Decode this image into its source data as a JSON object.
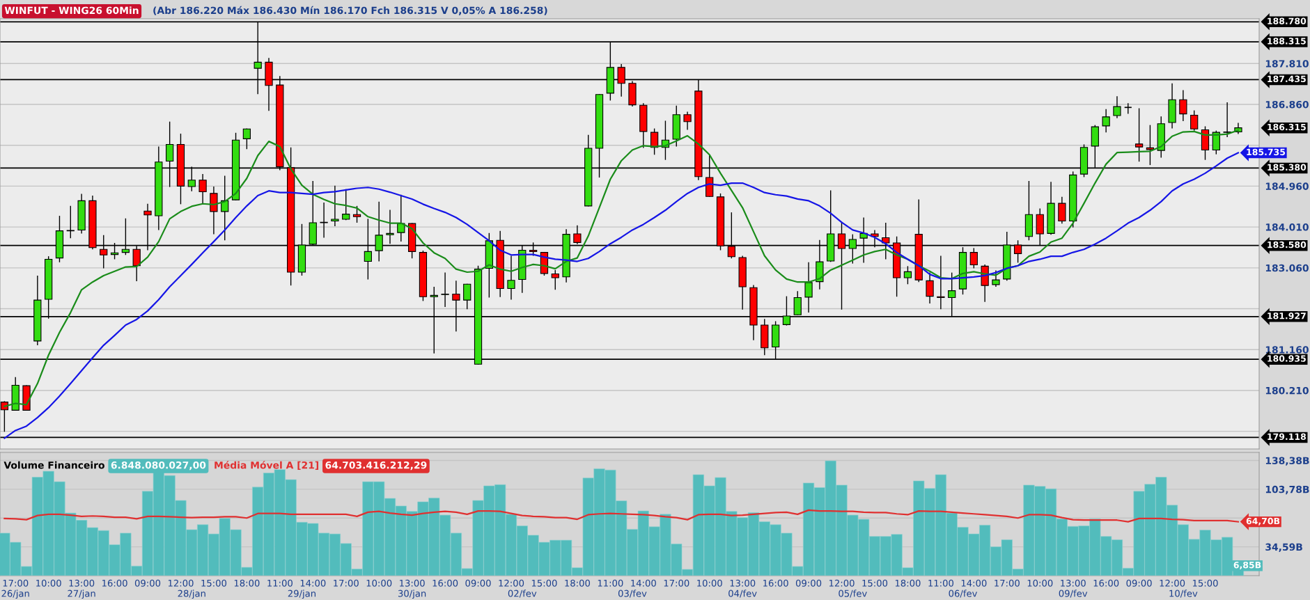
{
  "chart_data": [
    {
      "type": "candlestick",
      "title": "WINFUT - WING26 60Min",
      "subtitle": "(Abr 186.220 Máx 186.430 Mín 186.170 Fch 186.315 V 0,05% A 186.258)",
      "ohlc": [
        [
          179940,
          179960,
          179250,
          179760
        ],
        [
          179750,
          180520,
          179740,
          180330
        ],
        [
          180320,
          180330,
          179750,
          179750
        ],
        [
          181360,
          182880,
          181260,
          182310
        ],
        [
          182330,
          183330,
          181880,
          183260
        ],
        [
          183290,
          184270,
          183190,
          183920
        ],
        [
          183920,
          184500,
          183750,
          183930
        ],
        [
          183940,
          184780,
          183860,
          184620
        ],
        [
          184620,
          184740,
          183490,
          183530
        ],
        [
          183490,
          183820,
          183050,
          183360
        ],
        [
          183370,
          183640,
          183260,
          183410
        ],
        [
          183420,
          184210,
          183360,
          183490
        ],
        [
          183490,
          183570,
          182750,
          183110
        ],
        [
          184380,
          184550,
          183470,
          184290
        ],
        [
          184270,
          185880,
          183940,
          185520
        ],
        [
          185540,
          186460,
          184940,
          185930
        ],
        [
          185930,
          186180,
          184540,
          184960
        ],
        [
          184950,
          185410,
          184840,
          185100
        ],
        [
          185100,
          185240,
          184530,
          184830
        ],
        [
          184790,
          184950,
          183840,
          184370
        ],
        [
          184370,
          185200,
          183700,
          184620
        ],
        [
          184640,
          186200,
          184630,
          186030
        ],
        [
          186060,
          186300,
          185820,
          186290
        ],
        [
          187700,
          188780,
          187100,
          187840
        ],
        [
          187840,
          187940,
          186710,
          187300
        ],
        [
          187310,
          187520,
          185330,
          185410
        ],
        [
          185390,
          185860,
          182650,
          182960
        ],
        [
          182960,
          184080,
          182880,
          183590
        ],
        [
          183610,
          185080,
          183590,
          184110
        ],
        [
          184110,
          184580,
          183760,
          184120
        ],
        [
          184150,
          184970,
          184030,
          184190
        ],
        [
          184190,
          184890,
          184170,
          184310
        ],
        [
          184300,
          184500,
          184110,
          184250
        ],
        [
          183210,
          184200,
          182790,
          183440
        ],
        [
          183460,
          184600,
          183210,
          183820
        ],
        [
          183830,
          184410,
          183620,
          183860
        ],
        [
          183880,
          184760,
          183670,
          184090
        ],
        [
          184090,
          184100,
          183280,
          183440
        ],
        [
          183420,
          183460,
          182290,
          182390
        ],
        [
          182390,
          182620,
          181070,
          182420
        ],
        [
          182440,
          182950,
          182150,
          182450
        ],
        [
          182450,
          182760,
          181580,
          182310
        ],
        [
          182310,
          182690,
          182100,
          182680
        ],
        [
          180820,
          183110,
          180810,
          183030
        ],
        [
          183050,
          183870,
          182370,
          183690
        ],
        [
          183700,
          183920,
          182380,
          182580
        ],
        [
          182580,
          183340,
          182320,
          182770
        ],
        [
          182790,
          183590,
          182480,
          183470
        ],
        [
          183470,
          183650,
          183340,
          183440
        ],
        [
          183420,
          183430,
          182880,
          182930
        ],
        [
          182920,
          183010,
          182550,
          182830
        ],
        [
          182850,
          183960,
          182720,
          183840
        ],
        [
          183850,
          184050,
          183610,
          183650
        ],
        [
          184500,
          186150,
          184490,
          185840
        ],
        [
          185840,
          187100,
          185160,
          187090
        ],
        [
          187120,
          188310,
          186950,
          187720
        ],
        [
          187720,
          187800,
          187040,
          187350
        ],
        [
          187350,
          187400,
          186810,
          186850
        ],
        [
          186840,
          186890,
          185850,
          186230
        ],
        [
          186210,
          186300,
          185690,
          185860
        ],
        [
          185860,
          186480,
          185570,
          186030
        ],
        [
          186050,
          186830,
          185880,
          186620
        ],
        [
          186620,
          186690,
          186270,
          186460
        ],
        [
          187170,
          187430,
          185100,
          185180
        ],
        [
          185160,
          185680,
          184710,
          184720
        ],
        [
          184710,
          184790,
          183470,
          183570
        ],
        [
          183560,
          184350,
          183280,
          183320
        ],
        [
          183300,
          183340,
          182090,
          182620
        ],
        [
          182600,
          182660,
          181380,
          181730
        ],
        [
          181730,
          181870,
          181030,
          181200
        ],
        [
          181220,
          181820,
          180940,
          181730
        ],
        [
          181740,
          182400,
          181720,
          181940
        ],
        [
          181970,
          182520,
          181960,
          182370
        ],
        [
          182380,
          183190,
          182020,
          182720
        ],
        [
          182740,
          183710,
          182560,
          183200
        ],
        [
          183220,
          184860,
          183200,
          183850
        ],
        [
          183850,
          184130,
          182090,
          183510
        ],
        [
          183510,
          183840,
          183160,
          183720
        ],
        [
          183750,
          184230,
          183180,
          183860
        ],
        [
          183850,
          183940,
          183540,
          183790
        ],
        [
          183760,
          184110,
          183260,
          183640
        ],
        [
          183640,
          183790,
          182390,
          182830
        ],
        [
          182830,
          183100,
          182680,
          182970
        ],
        [
          183840,
          184650,
          182730,
          182780
        ],
        [
          182760,
          182950,
          182230,
          182400
        ],
        [
          182390,
          183340,
          182100,
          182370
        ],
        [
          182370,
          182950,
          181930,
          182530
        ],
        [
          182570,
          183540,
          182440,
          183420
        ],
        [
          183420,
          183520,
          183050,
          183130
        ],
        [
          183100,
          183140,
          182270,
          182650
        ],
        [
          182670,
          183000,
          182620,
          182780
        ],
        [
          182800,
          183900,
          182760,
          183590
        ],
        [
          183590,
          183700,
          183180,
          183390
        ],
        [
          183790,
          185080,
          183700,
          184300
        ],
        [
          184300,
          184440,
          183590,
          183850
        ],
        [
          183860,
          185060,
          183830,
          184560
        ],
        [
          184560,
          184710,
          184090,
          184150
        ],
        [
          184150,
          185300,
          184000,
          185220
        ],
        [
          185240,
          185930,
          185170,
          185860
        ],
        [
          185890,
          186380,
          185390,
          186340
        ],
        [
          186360,
          186750,
          186210,
          186570
        ],
        [
          186600,
          187050,
          186540,
          186810
        ],
        [
          186790,
          186890,
          186640,
          186790
        ],
        [
          185940,
          186770,
          185530,
          185870
        ],
        [
          185850,
          186380,
          185450,
          185810
        ],
        [
          185790,
          186580,
          185620,
          186410
        ],
        [
          186440,
          187350,
          186300,
          186970
        ],
        [
          186970,
          187190,
          186470,
          186640
        ],
        [
          186610,
          186720,
          186250,
          186290
        ],
        [
          186270,
          186350,
          185570,
          185800
        ],
        [
          185800,
          186250,
          185700,
          186210
        ],
        [
          186210,
          186910,
          186100,
          186220
        ],
        [
          186220,
          186430,
          186170,
          186315
        ]
      ],
      "colors": [
        "#ff0000",
        "#33dd11",
        "#ff0000",
        "#33dd11",
        "#33dd11",
        "#33dd11",
        "#33dd11",
        "#33dd11",
        "#ff0000",
        "#ff0000",
        "#33dd11",
        "#33dd11",
        "#ff0000",
        "#ff0000",
        "#33dd11",
        "#33dd11",
        "#ff0000",
        "#33dd11",
        "#ff0000",
        "#ff0000",
        "#33dd11",
        "#33dd11",
        "#33dd11",
        "#33dd11",
        "#ff0000",
        "#ff0000",
        "#ff0000",
        "#33dd11",
        "#33dd11",
        "#33dd11",
        "#33dd11",
        "#33dd11",
        "#ff0000",
        "#33dd11",
        "#33dd11",
        "#33dd11",
        "#33dd11",
        "#ff0000",
        "#ff0000",
        "#33dd11",
        "#33dd11",
        "#ff0000",
        "#33dd11",
        "#33dd11",
        "#33dd11",
        "#ff0000",
        "#33dd11",
        "#33dd11",
        "#ff0000",
        "#ff0000",
        "#ff0000",
        "#33dd11",
        "#ff0000",
        "#33dd11",
        "#33dd11",
        "#33dd11",
        "#ff0000",
        "#ff0000",
        "#ff0000",
        "#ff0000",
        "#33dd11",
        "#33dd11",
        "#ff0000",
        "#ff0000",
        "#ff0000",
        "#ff0000",
        "#ff0000",
        "#ff0000",
        "#ff0000",
        "#ff0000",
        "#33dd11",
        "#33dd11",
        "#33dd11",
        "#33dd11",
        "#33dd11",
        "#33dd11",
        "#ff0000",
        "#33dd11",
        "#33dd11",
        "#ff0000",
        "#ff0000",
        "#ff0000",
        "#33dd11",
        "#ff0000",
        "#ff0000",
        "#ff0000",
        "#33dd11",
        "#33dd11",
        "#ff0000",
        "#ff0000",
        "#33dd11",
        "#33dd11",
        "#ff0000",
        "#33dd11",
        "#ff0000",
        "#33dd11",
        "#ff0000",
        "#33dd11",
        "#33dd11",
        "#33dd11",
        "#33dd11",
        "#33dd11",
        "#000000",
        "#ff0000",
        "#ff0000",
        "#33dd11",
        "#33dd11",
        "#ff0000",
        "#ff0000",
        "#ff0000",
        "#33dd11",
        "#33dd11",
        "#33dd11"
      ],
      "value_labels": [
        null,
        null,
        null,
        null,
        null,
        null,
        null,
        null,
        null,
        null,
        null,
        null,
        null,
        null,
        null,
        null,
        null,
        null,
        null,
        null,
        null,
        null,
        null,
        null,
        null,
        null,
        null,
        null,
        null,
        null,
        null,
        null,
        null,
        null,
        null,
        null,
        null,
        null,
        null,
        null,
        null,
        null,
        null,
        null,
        null,
        null,
        null,
        null,
        null,
        null,
        null,
        null,
        null,
        null,
        null,
        null,
        null,
        null,
        null,
        null,
        null,
        null,
        null,
        null,
        null,
        null,
        null,
        null,
        null,
        null,
        null,
        null,
        null,
        null,
        null,
        null,
        null,
        null,
        null,
        null,
        null,
        null,
        null,
        null,
        null,
        null,
        null,
        null,
        null,
        null,
        null,
        null,
        null,
        null,
        null,
        null,
        null,
        null,
        null,
        null,
        null,
        null,
        null,
        null,
        null,
        null,
        null,
        null,
        null,
        null,
        null,
        null,
        "186.315"
      ],
      "series": [
        {
          "type": "line",
          "color": "#1a8c1a",
          "values": [
            179840,
            179910,
            179880,
            180370,
            181030,
            181560,
            182020,
            182550,
            182730,
            182880,
            182980,
            183080,
            183090,
            183310,
            183670,
            184200,
            184370,
            184490,
            184550,
            184530,
            184600,
            184790,
            185140,
            185670,
            186000,
            185880,
            185360,
            184980,
            184770,
            184650,
            184550,
            184510,
            184450,
            184250,
            184170,
            184100,
            184100,
            183970,
            183640,
            183410,
            183280,
            183030,
            182960,
            182980,
            183130,
            183030,
            182980,
            183070,
            183140,
            183110,
            183040,
            183210,
            183290,
            183800,
            184460,
            185120,
            185550,
            185800,
            185900,
            185880,
            185900,
            186010,
            186130,
            185940,
            185690,
            185260,
            184860,
            184460,
            183900,
            183340,
            183010,
            182800,
            182730,
            182730,
            182810,
            183010,
            183120,
            183240,
            183360,
            183440,
            183490,
            183360,
            183260,
            183110,
            182980,
            182830,
            182810,
            182930,
            182970,
            182920,
            182890,
            183050,
            183110,
            183330,
            183430,
            183660,
            183750,
            184100,
            184560,
            185030,
            185470,
            185740,
            185750,
            185760,
            185770,
            185880,
            186120,
            186220,
            186230,
            186150,
            186150,
            186170,
            186260
          ]
        },
        {
          "type": "line",
          "color": "#1515e6",
          "values": [
            179100,
            179280,
            179380,
            179580,
            179810,
            180080,
            180370,
            180670,
            180970,
            181260,
            181490,
            181730,
            181860,
            182060,
            182320,
            182620,
            182880,
            183140,
            183410,
            183670,
            183940,
            184230,
            184500,
            184740,
            184850,
            184810,
            184810,
            184790,
            184770,
            184810,
            184830,
            184870,
            184910,
            184930,
            184890,
            184820,
            184740,
            184660,
            184540,
            184440,
            184350,
            184230,
            184070,
            183880,
            183690,
            183470,
            183360,
            183370,
            183370,
            183310,
            183260,
            183240,
            183210,
            183280,
            183440,
            183620,
            183770,
            183940,
            184070,
            184230,
            184400,
            184600,
            184790,
            184930,
            185010,
            184980,
            185030,
            185030,
            184930,
            184810,
            184760,
            184730,
            184660,
            184620,
            184500,
            184330,
            184120,
            183940,
            183870,
            183770,
            183620,
            183420,
            183260,
            183110,
            182910,
            182810,
            182810,
            182830,
            182850,
            182880,
            182950,
            183050,
            183110,
            183210,
            183260,
            183330,
            183330,
            183420,
            183490,
            183610,
            183750,
            183920,
            184100,
            184230,
            184400,
            184600,
            184850,
            185010,
            185120,
            185260,
            185430,
            185610,
            185735
          ],
          "value_labels": [
            null,
            null,
            null,
            null,
            null,
            null,
            null,
            null,
            null,
            null,
            null,
            null,
            null,
            null,
            null,
            null,
            null,
            null,
            null,
            null,
            null,
            null,
            null,
            null,
            null,
            null,
            null,
            null,
            null,
            null,
            null,
            null,
            null,
            null,
            null,
            null,
            null,
            null,
            null,
            null,
            null,
            null,
            null,
            null,
            null,
            null,
            null,
            null,
            null,
            null,
            null,
            null,
            null,
            null,
            null,
            null,
            null,
            null,
            null,
            null,
            null,
            null,
            null,
            null,
            null,
            null,
            null,
            null,
            null,
            null,
            null,
            null,
            null,
            null,
            null,
            null,
            null,
            null,
            null,
            null,
            null,
            null,
            null,
            null,
            null,
            null,
            null,
            null,
            null,
            null,
            null,
            null,
            null,
            null,
            null,
            null,
            null,
            null,
            null,
            null,
            null,
            null,
            null,
            null,
            null,
            null,
            null,
            null,
            null,
            null,
            null,
            null,
            "185.735"
          ]
        }
      ],
      "ylim": [
        178850,
        188850
      ],
      "yticks": [
        {
          "value": 187810,
          "label": "187.810"
        },
        {
          "value": 186860,
          "label": "186.860"
        },
        {
          "value": 185910,
          "label": null
        },
        {
          "value": 184960,
          "label": "184.960"
        },
        {
          "value": 184010,
          "label": "184.010"
        },
        {
          "value": 183060,
          "label": "183.060"
        },
        {
          "value": 182110,
          "label": null
        },
        {
          "value": 181160,
          "label": "181.160"
        },
        {
          "value": 180210,
          "label": "180.210"
        },
        {
          "value": 179260,
          "label": null
        }
      ],
      "ref_lines": [
        {
          "axis": "y",
          "value": 188780,
          "label": "188.780",
          "color": "#000000"
        },
        {
          "axis": "y",
          "value": 188315,
          "label": "188.315",
          "color": "#000000"
        },
        {
          "axis": "y",
          "value": 187435,
          "label": "187.435",
          "color": "#000000"
        },
        {
          "axis": "y",
          "value": 185380,
          "label": "185.380",
          "color": "#000000"
        },
        {
          "axis": "y",
          "value": 183580,
          "label": "183.580",
          "color": "#000000"
        },
        {
          "axis": "y",
          "value": 181927,
          "label": "181.927",
          "color": "#000000"
        },
        {
          "axis": "y",
          "value": 180935,
          "label": "180.935",
          "color": "#000000"
        },
        {
          "axis": "y",
          "value": 179118,
          "label": "179.118",
          "color": "#000000"
        }
      ],
      "grid": "y",
      "tick_labels": "y"
    },
    {
      "type": "bar",
      "categories": [
        null,
        "17:00\n26/jan",
        null,
        null,
        "10:00",
        null,
        null,
        "13:00\n27/jan",
        null,
        null,
        "16:00",
        null,
        null,
        "09:00",
        null,
        null,
        "12:00",
        "\n28/jan",
        null,
        "15:00",
        null,
        null,
        "18:00",
        null,
        null,
        "11:00",
        null,
        "\n29/jan",
        "14:00",
        null,
        null,
        "17:00",
        null,
        null,
        "10:00",
        null,
        null,
        "13:00\n30/jan",
        null,
        null,
        "16:00",
        null,
        null,
        "09:00",
        null,
        null,
        "12:00",
        "\n02/fev",
        null,
        "15:00",
        null,
        null,
        "18:00",
        null,
        null,
        "11:00",
        null,
        "\n03/fev",
        "14:00",
        null,
        null,
        "17:00",
        null,
        null,
        "10:00",
        null,
        null,
        "13:00\n04/fev",
        null,
        null,
        "16:00",
        null,
        null,
        "09:00",
        null,
        null,
        "12:00",
        "\n05/fev",
        null,
        "15:00",
        null,
        null,
        "18:00",
        null,
        null,
        "11:00",
        null,
        "\n06/fev",
        "14:00",
        null,
        null,
        "17:00",
        null,
        null,
        "10:00",
        null,
        null,
        "13:00\n09/fev",
        null,
        null,
        "16:00",
        null,
        null,
        "09:00",
        null,
        null,
        "12:00",
        "\n10/fev",
        null,
        "15:00",
        null,
        null,
        null
      ],
      "series": [
        {
          "name": "Volume Financeiro",
          "color": "#52bcbc",
          "values": [
            51.1,
            40.1,
            11.0,
            118.3,
            125.4,
            112.8,
            75.2,
            66.7,
            57.7,
            54.2,
            37.1,
            51.1,
            11.5,
            101.3,
            125.4,
            120.3,
            90.3,
            55.2,
            61.2,
            50.1,
            68.7,
            55.2,
            10.0,
            106.3,
            123.3,
            127.4,
            115.3,
            64.2,
            62.7,
            51.1,
            50.1,
            38.6,
            8.0,
            112.8,
            112.8,
            92.8,
            83.7,
            77.2,
            88.7,
            93.3,
            72.7,
            51.1,
            8.5,
            90.3,
            107.8,
            109.3,
            73.7,
            59.7,
            48.6,
            40.1,
            42.6,
            42.6,
            9.5,
            117.3,
            128.4,
            126.9,
            89.8,
            55.7,
            77.7,
            58.7,
            73.7,
            38.1,
            7.5,
            121.3,
            107.8,
            117.8,
            77.2,
            69.7,
            75.7,
            64.7,
            61.2,
            51.1,
            11.0,
            111.3,
            105.8,
            137.9,
            108.8,
            72.7,
            67.7,
            47.1,
            47.1,
            49.6,
            9.5,
            113.8,
            104.8,
            121.3,
            75.2,
            58.2,
            50.1,
            60.7,
            34.6,
            43.1,
            8.0,
            108.8,
            107.3,
            104.3,
            68.2,
            59.2,
            59.7,
            68.2,
            47.1,
            43.1,
            9.0,
            101.3,
            109.8,
            118.3,
            84.7,
            61.2,
            43.6,
            54.7,
            43.1,
            46.1,
            6.85
          ],
          "value_labels": [
            null,
            null,
            null,
            null,
            null,
            null,
            null,
            null,
            null,
            null,
            null,
            null,
            null,
            null,
            null,
            null,
            null,
            null,
            null,
            null,
            null,
            null,
            null,
            null,
            null,
            null,
            null,
            null,
            null,
            null,
            null,
            null,
            null,
            null,
            null,
            null,
            null,
            null,
            null,
            null,
            null,
            null,
            null,
            null,
            null,
            null,
            null,
            null,
            null,
            null,
            null,
            null,
            null,
            null,
            null,
            null,
            null,
            null,
            null,
            null,
            null,
            null,
            null,
            null,
            null,
            null,
            null,
            null,
            null,
            null,
            null,
            null,
            null,
            null,
            null,
            null,
            null,
            null,
            null,
            null,
            null,
            null,
            null,
            null,
            null,
            null,
            null,
            null,
            null,
            null,
            null,
            null,
            null,
            null,
            null,
            null,
            null,
            null,
            null,
            null,
            null,
            null,
            null,
            null,
            null,
            null,
            null,
            null,
            null,
            null,
            null,
            null,
            "6,85B"
          ]
        },
        {
          "name": "Média Móvel A [21]",
          "type": "line",
          "color": "#e03030",
          "values": [
            68.7,
            68.2,
            67.2,
            72.2,
            73.7,
            73.7,
            72.7,
            71.2,
            71.7,
            71.2,
            70.2,
            70.2,
            68.2,
            71.2,
            71.2,
            70.7,
            70.2,
            69.7,
            70.2,
            70.2,
            70.7,
            70.7,
            69.2,
            74.7,
            74.7,
            74.7,
            73.7,
            73.7,
            73.7,
            73.7,
            73.7,
            73.7,
            71.2,
            76.2,
            77.2,
            75.2,
            73.7,
            72.7,
            74.7,
            76.2,
            77.2,
            76.2,
            73.7,
            77.7,
            77.7,
            77.2,
            74.7,
            72.2,
            71.2,
            70.7,
            69.7,
            69.7,
            67.7,
            73.2,
            74.2,
            74.7,
            74.2,
            73.7,
            73.2,
            72.2,
            70.7,
            69.7,
            67.2,
            73.2,
            73.7,
            73.7,
            72.2,
            72.7,
            73.7,
            74.7,
            75.7,
            76.2,
            73.7,
            78.7,
            77.7,
            77.7,
            77.2,
            77.2,
            76.2,
            75.7,
            75.7,
            74.2,
            73.2,
            77.7,
            77.2,
            77.2,
            76.2,
            75.2,
            74.2,
            73.2,
            72.2,
            71.2,
            69.2,
            73.2,
            73.2,
            72.7,
            69.7,
            67.2,
            66.7,
            66.7,
            66.7,
            66.7,
            64.7,
            68.7,
            68.7,
            68.7,
            67.7,
            67.2,
            66.2,
            66.2,
            66.2,
            66.2,
            64.7
          ],
          "value_labels": [
            null,
            null,
            null,
            null,
            null,
            null,
            null,
            null,
            null,
            null,
            null,
            null,
            null,
            null,
            null,
            null,
            null,
            null,
            null,
            null,
            null,
            null,
            null,
            null,
            null,
            null,
            null,
            null,
            null,
            null,
            null,
            null,
            null,
            null,
            null,
            null,
            null,
            null,
            null,
            null,
            null,
            null,
            null,
            null,
            null,
            null,
            null,
            null,
            null,
            null,
            null,
            null,
            null,
            null,
            null,
            null,
            null,
            null,
            null,
            null,
            null,
            null,
            null,
            null,
            null,
            null,
            null,
            null,
            null,
            null,
            null,
            null,
            null,
            null,
            null,
            null,
            null,
            null,
            null,
            null,
            null,
            null,
            null,
            null,
            null,
            null,
            null,
            null,
            null,
            null,
            null,
            null,
            null,
            null,
            null,
            null,
            null,
            null,
            null,
            null,
            null,
            null,
            null,
            null,
            null,
            null,
            null,
            null,
            null,
            null,
            null,
            null,
            "64,70B"
          ]
        }
      ],
      "ylim": [
        0,
        148
      ],
      "yticks": [
        {
          "value": 34.59,
          "label": "34,59B"
        },
        {
          "value": 69.18,
          "label": null
        },
        {
          "value": 103.78,
          "label": "103,78B"
        },
        {
          "value": 138.38,
          "label": "138,38B"
        }
      ],
      "annotations": [
        "6.848.080.027,00",
        "64.703.416.212,29"
      ],
      "grid": "y"
    }
  ]
}
